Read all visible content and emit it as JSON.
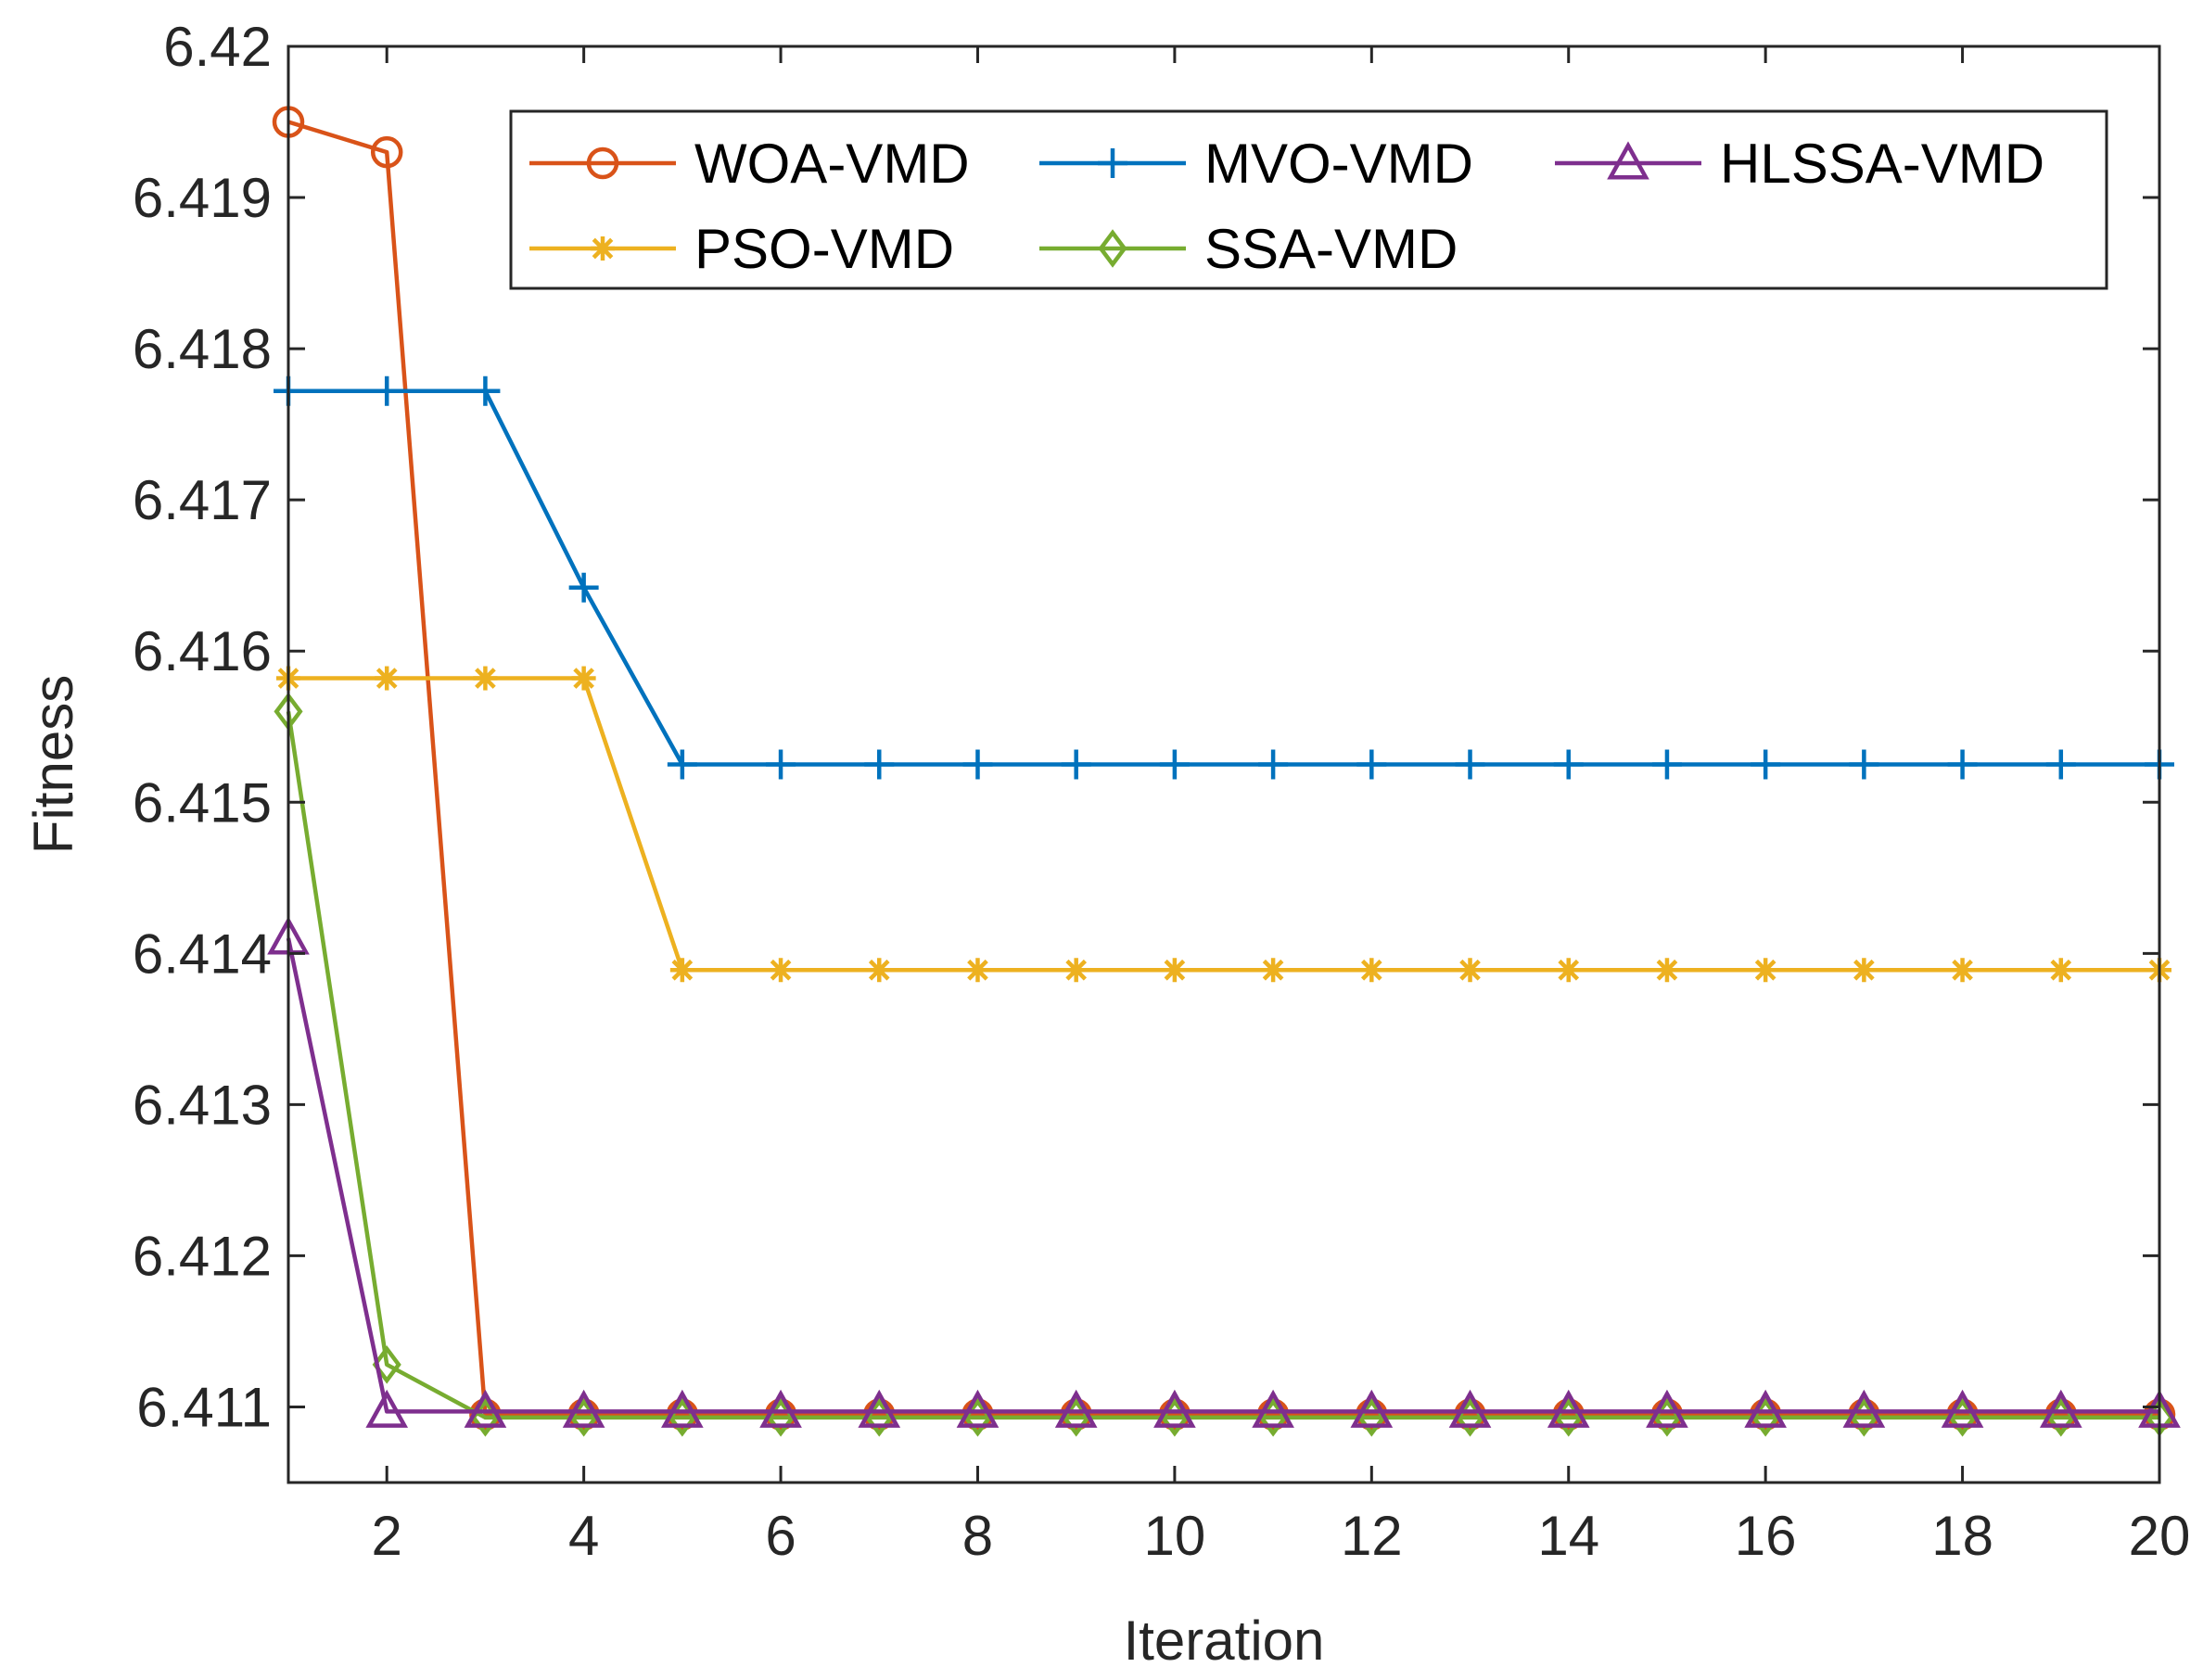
{
  "chart_data": {
    "type": "line",
    "title": "",
    "xlabel": "Iteration",
    "ylabel": "Fitness",
    "xlim": [
      1,
      20
    ],
    "ylim": [
      6.4105,
      6.42
    ],
    "xticks": [
      2,
      4,
      6,
      8,
      10,
      12,
      14,
      16,
      18,
      20
    ],
    "yticks": [
      6.411,
      6.412,
      6.413,
      6.414,
      6.415,
      6.416,
      6.417,
      6.418,
      6.419,
      6.42
    ],
    "ytick_labels": [
      "6.411",
      "6.412",
      "6.413",
      "6.414",
      "6.415",
      "6.416",
      "6.417",
      "6.418",
      "6.419",
      "6.42"
    ],
    "x": [
      1,
      2,
      3,
      4,
      5,
      6,
      7,
      8,
      9,
      10,
      11,
      12,
      13,
      14,
      15,
      16,
      17,
      18,
      19,
      20
    ],
    "legend_position": "top-right",
    "series": [
      {
        "name": "WOA-VMD",
        "color": "#D95319",
        "marker": "circle",
        "values": [
          6.4195,
          6.4193,
          6.41095,
          6.41095,
          6.41095,
          6.41095,
          6.41095,
          6.41095,
          6.41095,
          6.41095,
          6.41095,
          6.41095,
          6.41095,
          6.41095,
          6.41095,
          6.41095,
          6.41095,
          6.41095,
          6.41095,
          6.41095
        ]
      },
      {
        "name": "MVO-VMD",
        "color": "#0072BD",
        "marker": "plus",
        "values": [
          6.41772,
          6.41772,
          6.41772,
          6.41642,
          6.41525,
          6.41525,
          6.41525,
          6.41525,
          6.41525,
          6.41525,
          6.41525,
          6.41525,
          6.41525,
          6.41525,
          6.41525,
          6.41525,
          6.41525,
          6.41525,
          6.41525,
          6.41525
        ]
      },
      {
        "name": "HLSSA-VMD",
        "color": "#7E2F8E",
        "marker": "triangle",
        "values": [
          6.4141,
          6.41097,
          6.41097,
          6.41097,
          6.41097,
          6.41097,
          6.41097,
          6.41097,
          6.41097,
          6.41097,
          6.41097,
          6.41097,
          6.41097,
          6.41097,
          6.41097,
          6.41097,
          6.41097,
          6.41097,
          6.41097,
          6.41097
        ]
      },
      {
        "name": "PSO-VMD",
        "color": "#EDB120",
        "marker": "star",
        "values": [
          6.41582,
          6.41582,
          6.41582,
          6.41582,
          6.41389,
          6.41389,
          6.41389,
          6.41389,
          6.41389,
          6.41389,
          6.41389,
          6.41389,
          6.41389,
          6.41389,
          6.41389,
          6.41389,
          6.41389,
          6.41389,
          6.41389,
          6.41389
        ]
      },
      {
        "name": "SSA-VMD",
        "color": "#77AC30",
        "marker": "diamond",
        "values": [
          6.4156,
          6.41128,
          6.41093,
          6.41093,
          6.41093,
          6.41093,
          6.41093,
          6.41093,
          6.41093,
          6.41093,
          6.41093,
          6.41093,
          6.41093,
          6.41093,
          6.41093,
          6.41093,
          6.41093,
          6.41093,
          6.41093,
          6.41093
        ]
      }
    ]
  }
}
